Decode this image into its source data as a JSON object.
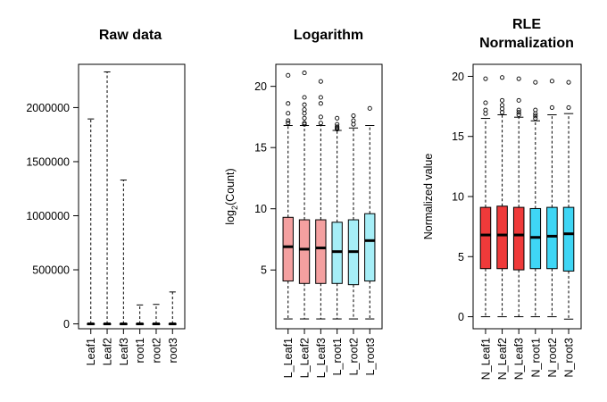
{
  "chart_data": [
    {
      "type": "box",
      "title": "Raw data",
      "ylabel": "",
      "ylim": [
        -45000,
        2400000
      ],
      "yticks": [
        0,
        500000,
        1000000,
        1500000,
        2000000
      ],
      "ytick_labels": [
        "0",
        "500000",
        "1000000",
        "1500000",
        "2000000"
      ],
      "categories": [
        "Leaf1",
        "Leaf2",
        "Leaf3",
        "root1",
        "root2",
        "root3"
      ],
      "colors": [
        "#ffffff",
        "#ffffff",
        "#ffffff",
        "#ffffff",
        "#ffffff",
        "#ffffff"
      ],
      "boxes": [
        {
          "min": 0,
          "q1": 0,
          "median": 0,
          "q3": 0,
          "max": 1895000,
          "outliers": []
        },
        {
          "min": 0,
          "q1": 0,
          "median": 0,
          "q3": 0,
          "max": 2330000,
          "outliers": []
        },
        {
          "min": 0,
          "q1": 0,
          "median": 0,
          "q3": 0,
          "max": 1330000,
          "outliers": []
        },
        {
          "min": 0,
          "q1": 0,
          "median": 0,
          "q3": 0,
          "max": 175000,
          "outliers": []
        },
        {
          "min": 0,
          "q1": 0,
          "median": 0,
          "q3": 0,
          "max": 180000,
          "outliers": []
        },
        {
          "min": 0,
          "q1": 0,
          "median": 0,
          "q3": 0,
          "max": 295000,
          "outliers": []
        }
      ]
    },
    {
      "type": "box",
      "title": "Logarithm",
      "ylabel_main": "log",
      "ylabel_sub": "2",
      "ylabel_rest": "(Count)",
      "ylim": [
        0.2,
        21.8
      ],
      "yticks": [
        5,
        10,
        15,
        20
      ],
      "ytick_labels": [
        "5",
        "10",
        "15",
        "20"
      ],
      "categories": [
        "L_Leaf1",
        "L_Leaf2",
        "L_Leaf3",
        "L_root1",
        "L_root2",
        "L_root3"
      ],
      "colors": [
        "#f4a0a0",
        "#f4a0a0",
        "#f4a0a0",
        "#a6eef7",
        "#a6eef7",
        "#a6eef7"
      ],
      "boxes": [
        {
          "min": 1.0,
          "q1": 4.1,
          "median": 6.9,
          "q3": 9.3,
          "max": 16.8,
          "outliers": [
            17.0,
            17.2,
            17.8,
            18.6,
            20.9
          ]
        },
        {
          "min": 1.0,
          "q1": 3.9,
          "median": 6.7,
          "q3": 9.1,
          "max": 16.8,
          "outliers": [
            16.9,
            17.0,
            17.4,
            17.8,
            18.1,
            18.5,
            19.1,
            21.1
          ]
        },
        {
          "min": 1.0,
          "q1": 3.9,
          "median": 6.8,
          "q3": 9.1,
          "max": 16.8,
          "outliers": [
            17.0,
            17.5,
            18.6,
            19.1,
            20.4
          ]
        },
        {
          "min": 1.0,
          "q1": 3.9,
          "median": 6.5,
          "q3": 8.9,
          "max": 16.4,
          "outliers": [
            16.5,
            16.6,
            16.7,
            16.9,
            17.4
          ]
        },
        {
          "min": 1.0,
          "q1": 3.8,
          "median": 6.5,
          "q3": 9.1,
          "max": 16.6,
          "outliers": [
            16.9,
            17.2,
            17.6
          ]
        },
        {
          "min": 1.0,
          "q1": 4.1,
          "median": 7.4,
          "q3": 9.6,
          "max": 16.8,
          "outliers": [
            18.2
          ]
        }
      ]
    },
    {
      "type": "box",
      "title": "RLE",
      "title_line2": "Normalization",
      "ylabel": "Normalized value",
      "ylim": [
        -1.0,
        21.0
      ],
      "yticks": [
        0,
        5,
        10,
        15,
        20
      ],
      "ytick_labels": [
        "0",
        "5",
        "10",
        "15",
        "20"
      ],
      "categories": [
        "N_Leaf1",
        "N_Leaf2",
        "N_Leaf3",
        "N_root1",
        "N_root2",
        "N_root3"
      ],
      "colors": [
        "#ef3a3a",
        "#ef3a3a",
        "#ef3a3a",
        "#3fd6f5",
        "#3fd6f5",
        "#3fd6f5"
      ],
      "boxes": [
        {
          "min": 0.0,
          "q1": 4.0,
          "median": 6.8,
          "q3": 9.1,
          "max": 16.5,
          "outliers": [
            16.9,
            17.2,
            17.8,
            19.8
          ]
        },
        {
          "min": 0.0,
          "q1": 4.0,
          "median": 6.8,
          "q3": 9.2,
          "max": 16.8,
          "outliers": [
            17.0,
            17.3,
            17.6,
            18.0,
            19.9
          ]
        },
        {
          "min": 0.0,
          "q1": 3.9,
          "median": 6.8,
          "q3": 9.1,
          "max": 16.6,
          "outliers": [
            16.8,
            17.0,
            17.2,
            18.0,
            19.8
          ]
        },
        {
          "min": 0.0,
          "q1": 4.0,
          "median": 6.6,
          "q3": 9.0,
          "max": 16.3,
          "outliers": [
            16.5,
            16.7,
            16.9,
            17.2,
            19.5
          ]
        },
        {
          "min": 0.0,
          "q1": 4.0,
          "median": 6.7,
          "q3": 9.1,
          "max": 16.8,
          "outliers": [
            17.4,
            19.6
          ]
        },
        {
          "min": -0.2,
          "q1": 3.8,
          "median": 6.9,
          "q3": 9.1,
          "max": 16.9,
          "outliers": [
            17.4,
            19.5
          ]
        }
      ]
    }
  ]
}
